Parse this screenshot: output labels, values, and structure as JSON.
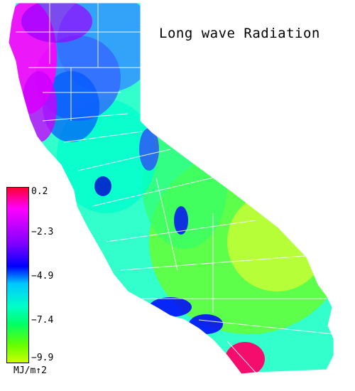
{
  "title": "Long wave Radiation",
  "legend": {
    "ticks": [
      "0.2",
      "−2.3",
      "−4.9",
      "−7.4",
      "−9.9"
    ],
    "units": "MJ/m↑2",
    "colors": [
      "#ff0033",
      "#ff00ff",
      "#8000ff",
      "#0000ff",
      "#00c8ff",
      "#00ffc8",
      "#00ff66",
      "#66ff00",
      "#ccff00"
    ]
  },
  "map": {
    "region": "California",
    "land_base_color": "#33ffcc",
    "border_color": "#ffffff"
  }
}
